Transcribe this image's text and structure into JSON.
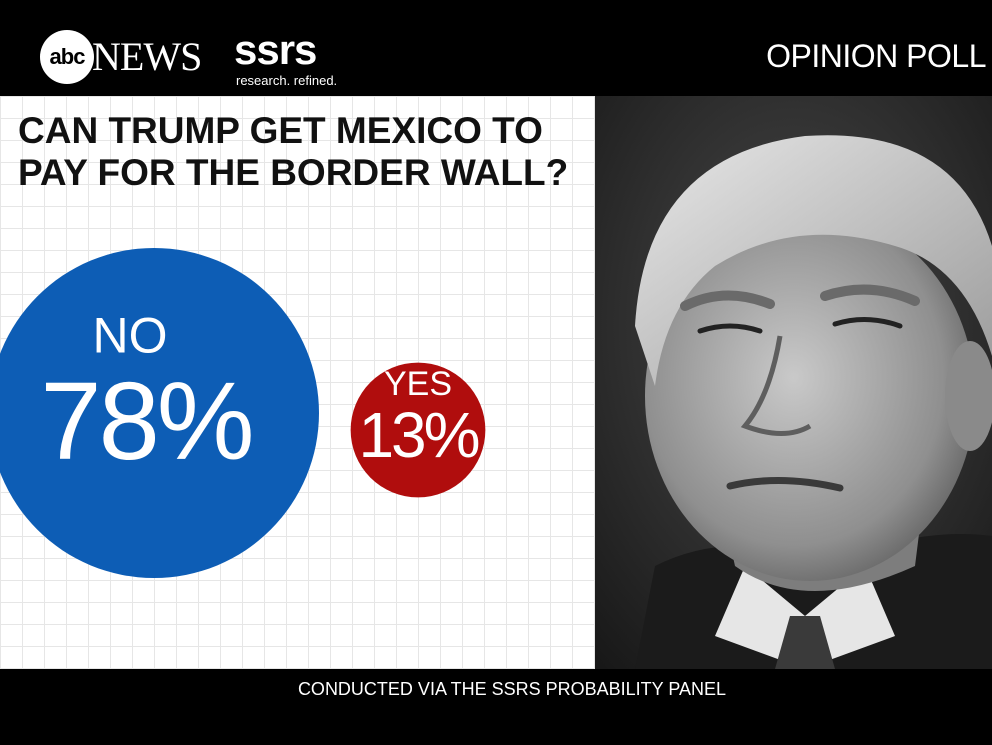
{
  "header": {
    "abc_label": "abc",
    "news_label": "NEWS",
    "ssrs_label": "ssrs",
    "ssrs_tagline": "research. refined.",
    "section_label": "OPINION POLL"
  },
  "chart_data": {
    "type": "bubble",
    "title": "CAN TRUMP GET MEXICO TO PAY FOR THE BORDER WALL?",
    "categories": [
      "NO",
      "YES"
    ],
    "values": [
      78,
      13
    ],
    "value_labels": [
      "78%",
      "13%"
    ],
    "colors": [
      "#0d5db5",
      "#b00d0d"
    ],
    "legend": "none",
    "grid": true
  },
  "photo": {
    "subject": "photo of Donald Trump"
  },
  "footer": {
    "note": "CONDUCTED VIA THE SSRS PROBABILITY PANEL"
  }
}
